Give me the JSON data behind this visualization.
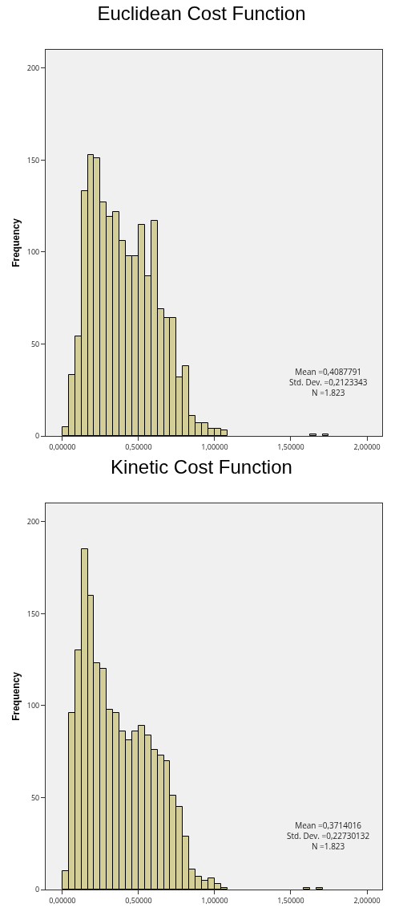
{
  "chart_data": [
    {
      "type": "histogram",
      "title": "Euclidean Cost Function",
      "ylabel": "Frequency",
      "color": "#d3cd98",
      "bins": [
        0,
        0.042,
        0.083,
        0.125,
        0.167,
        0.208,
        0.25,
        0.292,
        0.333,
        0.375,
        0.417,
        0.458,
        0.5,
        0.542,
        0.583,
        0.625,
        0.667,
        0.708,
        0.75,
        0.792,
        0.833,
        0.875,
        0.917,
        0.958,
        1,
        1.042,
        1.083,
        1.125,
        1.167,
        1.208,
        1.25,
        1.292,
        1.333,
        1.375,
        1.417,
        1.458,
        1.5,
        1.542,
        1.583,
        1.625,
        1.667,
        1.708,
        1.75
      ],
      "values": [
        5,
        33,
        54,
        133,
        153,
        151,
        127,
        119,
        122,
        106,
        98,
        98,
        115,
        87,
        117,
        69,
        64,
        64,
        32,
        38,
        11,
        7,
        7,
        4,
        4,
        3,
        0,
        0,
        0,
        0,
        0,
        0,
        0,
        0,
        0,
        0,
        0,
        0,
        0,
        1,
        0,
        1
      ],
      "xlim": [
        -0.11,
        2.1
      ],
      "ylim": [
        0,
        210
      ],
      "xticks": [
        {
          "value": 0,
          "label": "0,00000"
        },
        {
          "value": 0.5,
          "label": "0,50000"
        },
        {
          "value": 1,
          "label": "1,00000"
        },
        {
          "value": 1.5,
          "label": "1,50000"
        },
        {
          "value": 2,
          "label": "2,00000"
        }
      ],
      "yticks": [
        0,
        50,
        100,
        150,
        200
      ],
      "annotations": [
        "Mean =0,4087791",
        "Std. Dev. =0,2123343",
        "N =1.823"
      ]
    },
    {
      "type": "histogram",
      "title": "Kinetic Cost Function",
      "ylabel": "Frequency",
      "color": "#d3cd98",
      "bins": [
        0,
        0.042,
        0.083,
        0.125,
        0.167,
        0.208,
        0.25,
        0.292,
        0.333,
        0.375,
        0.417,
        0.458,
        0.5,
        0.542,
        0.583,
        0.625,
        0.667,
        0.708,
        0.75,
        0.792,
        0.833,
        0.875,
        0.917,
        0.958,
        1,
        1.042,
        1.083,
        1.125,
        1.167,
        1.208,
        1.25,
        1.292,
        1.333,
        1.375,
        1.417,
        1.458,
        1.5,
        1.542,
        1.583,
        1.625,
        1.667,
        1.708
      ],
      "values": [
        10,
        96,
        130,
        185,
        160,
        123,
        120,
        98,
        96,
        86,
        81,
        86,
        89,
        84,
        76,
        73,
        70,
        51,
        45,
        29,
        11,
        7,
        5,
        6,
        3,
        1,
        0,
        0,
        0,
        0,
        0,
        0,
        0,
        0,
        0,
        0,
        0,
        0,
        1,
        0,
        1
      ],
      "xlim": [
        -0.11,
        2.1
      ],
      "ylim": [
        0,
        210
      ],
      "xticks": [
        {
          "value": 0,
          "label": "0,00000"
        },
        {
          "value": 0.5,
          "label": "0,50000"
        },
        {
          "value": 1,
          "label": "1,00000"
        },
        {
          "value": 1.5,
          "label": "1,50000"
        },
        {
          "value": 2,
          "label": "2,00000"
        }
      ],
      "yticks": [
        0,
        50,
        100,
        150,
        200
      ],
      "annotations": [
        "Mean =0,3714016",
        "Std. Dev. =0,22730132",
        "N =1.823"
      ]
    }
  ]
}
